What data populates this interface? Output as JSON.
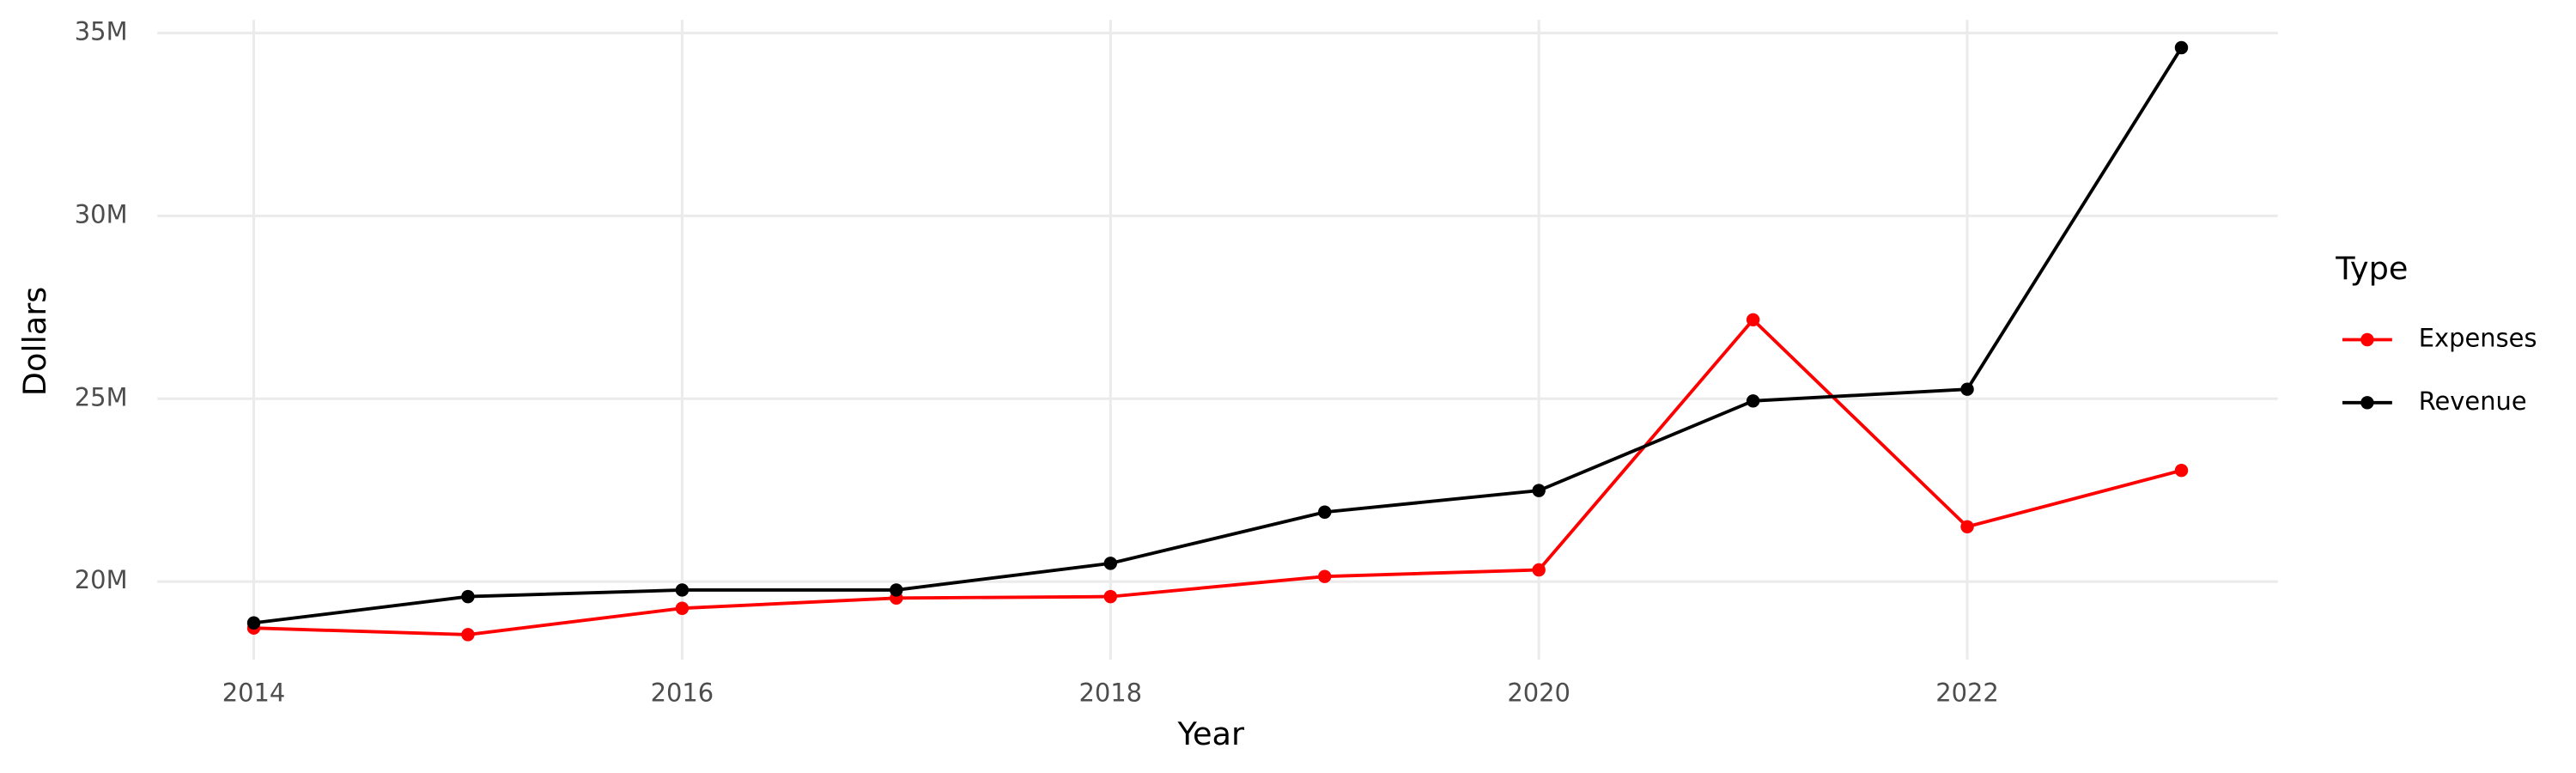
{
  "chart_data": {
    "type": "line",
    "x_label": "Year",
    "y_label": "Dollars",
    "x": [
      2014,
      2015,
      2016,
      2017,
      2018,
      2019,
      2020,
      2021,
      2022,
      2023
    ],
    "series": [
      {
        "name": "Expenses",
        "color": "#ff0000",
        "values": [
          18730000,
          18550000,
          19270000,
          19550000,
          19590000,
          20140000,
          20320000,
          27160000,
          21500000,
          23040000
        ]
      },
      {
        "name": "Revenue",
        "color": "#000000",
        "values": [
          18870000,
          19590000,
          19770000,
          19770000,
          20500000,
          21900000,
          22490000,
          24940000,
          25260000,
          34600000
        ]
      }
    ],
    "xlim": [
      2013.55,
      2023.45
    ],
    "xticks": [
      2014,
      2016,
      2018,
      2020,
      2022
    ],
    "ylim": [
      17870000,
      35360000
    ],
    "yticks": [
      {
        "value": 20000000,
        "label": "20M"
      },
      {
        "value": 25000000,
        "label": "25M"
      },
      {
        "value": 30000000,
        "label": "30M"
      },
      {
        "value": 35000000,
        "label": "35M"
      }
    ],
    "grid": true,
    "legend_title": "Type",
    "legend_position": "right"
  }
}
